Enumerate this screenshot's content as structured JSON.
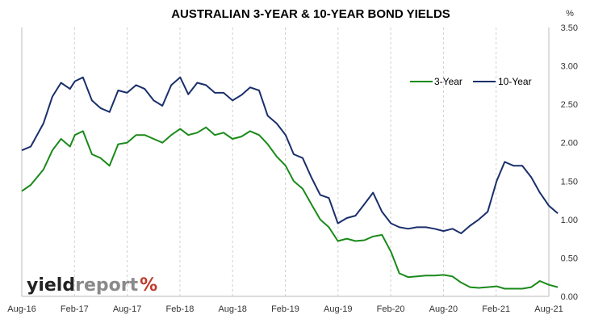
{
  "chart_data": {
    "type": "line",
    "title": "AUSTRALIAN 3-YEAR & 10-YEAR BOND YIELDS",
    "y_unit": "%",
    "ylim": [
      0,
      3.5
    ],
    "y_ticks": [
      "0.00",
      "0.50",
      "1.00",
      "1.50",
      "2.00",
      "2.50",
      "3.00",
      "3.50"
    ],
    "x_ticks": [
      "Aug-16",
      "Feb-17",
      "Aug-17",
      "Feb-18",
      "Aug-18",
      "Feb-19",
      "Aug-19",
      "Feb-20",
      "Aug-20",
      "Feb-21",
      "Aug-21"
    ],
    "grid": "vertical-dashed",
    "legend_position": "top-right",
    "series": [
      {
        "name": "3-Year",
        "color": "#1a8a1a",
        "points": [
          [
            "2016-08-01",
            1.37
          ],
          [
            "2016-09-01",
            1.45
          ],
          [
            "2016-10-15",
            1.65
          ],
          [
            "2016-11-15",
            1.9
          ],
          [
            "2016-12-15",
            2.05
          ],
          [
            "2017-01-15",
            1.95
          ],
          [
            "2017-02-01",
            2.1
          ],
          [
            "2017-03-01",
            2.15
          ],
          [
            "2017-04-01",
            1.85
          ],
          [
            "2017-05-01",
            1.8
          ],
          [
            "2017-06-01",
            1.7
          ],
          [
            "2017-07-01",
            1.98
          ],
          [
            "2017-08-01",
            2.0
          ],
          [
            "2017-09-01",
            2.1
          ],
          [
            "2017-10-01",
            2.1
          ],
          [
            "2017-11-01",
            2.05
          ],
          [
            "2017-12-01",
            2.0
          ],
          [
            "2018-01-01",
            2.1
          ],
          [
            "2018-02-01",
            2.18
          ],
          [
            "2018-03-01",
            2.1
          ],
          [
            "2018-04-01",
            2.13
          ],
          [
            "2018-05-01",
            2.2
          ],
          [
            "2018-06-01",
            2.1
          ],
          [
            "2018-07-01",
            2.13
          ],
          [
            "2018-08-01",
            2.05
          ],
          [
            "2018-09-01",
            2.08
          ],
          [
            "2018-10-01",
            2.15
          ],
          [
            "2018-11-01",
            2.1
          ],
          [
            "2018-12-01",
            1.98
          ],
          [
            "2019-01-01",
            1.82
          ],
          [
            "2019-02-01",
            1.7
          ],
          [
            "2019-03-01",
            1.5
          ],
          [
            "2019-04-01",
            1.4
          ],
          [
            "2019-05-01",
            1.2
          ],
          [
            "2019-06-01",
            1.0
          ],
          [
            "2019-07-01",
            0.9
          ],
          [
            "2019-08-01",
            0.72
          ],
          [
            "2019-09-01",
            0.75
          ],
          [
            "2019-10-01",
            0.72
          ],
          [
            "2019-11-01",
            0.73
          ],
          [
            "2019-12-01",
            0.78
          ],
          [
            "2020-01-01",
            0.8
          ],
          [
            "2020-02-01",
            0.58
          ],
          [
            "2020-03-01",
            0.3
          ],
          [
            "2020-04-01",
            0.25
          ],
          [
            "2020-05-01",
            0.26
          ],
          [
            "2020-06-01",
            0.27
          ],
          [
            "2020-07-01",
            0.27
          ],
          [
            "2020-08-01",
            0.28
          ],
          [
            "2020-09-01",
            0.26
          ],
          [
            "2020-10-01",
            0.18
          ],
          [
            "2020-11-01",
            0.12
          ],
          [
            "2020-12-01",
            0.11
          ],
          [
            "2021-01-01",
            0.12
          ],
          [
            "2021-02-01",
            0.13
          ],
          [
            "2021-03-01",
            0.1
          ],
          [
            "2021-04-01",
            0.1
          ],
          [
            "2021-05-01",
            0.1
          ],
          [
            "2021-06-01",
            0.12
          ],
          [
            "2021-07-01",
            0.2
          ],
          [
            "2021-08-01",
            0.15
          ],
          [
            "2021-09-01",
            0.12
          ]
        ]
      },
      {
        "name": "10-Year",
        "color": "#1a2f6b",
        "points": [
          [
            "2016-08-01",
            1.9
          ],
          [
            "2016-09-01",
            1.95
          ],
          [
            "2016-10-15",
            2.25
          ],
          [
            "2016-11-15",
            2.6
          ],
          [
            "2016-12-15",
            2.78
          ],
          [
            "2017-01-15",
            2.7
          ],
          [
            "2017-02-01",
            2.8
          ],
          [
            "2017-03-01",
            2.85
          ],
          [
            "2017-04-01",
            2.55
          ],
          [
            "2017-05-01",
            2.45
          ],
          [
            "2017-06-01",
            2.4
          ],
          [
            "2017-07-01",
            2.68
          ],
          [
            "2017-08-01",
            2.65
          ],
          [
            "2017-09-01",
            2.75
          ],
          [
            "2017-10-01",
            2.7
          ],
          [
            "2017-11-01",
            2.55
          ],
          [
            "2017-12-01",
            2.48
          ],
          [
            "2018-01-01",
            2.75
          ],
          [
            "2018-02-01",
            2.85
          ],
          [
            "2018-03-01",
            2.63
          ],
          [
            "2018-04-01",
            2.78
          ],
          [
            "2018-05-01",
            2.75
          ],
          [
            "2018-06-01",
            2.65
          ],
          [
            "2018-07-01",
            2.65
          ],
          [
            "2018-08-01",
            2.55
          ],
          [
            "2018-09-01",
            2.62
          ],
          [
            "2018-10-01",
            2.72
          ],
          [
            "2018-11-01",
            2.68
          ],
          [
            "2018-12-01",
            2.35
          ],
          [
            "2019-01-01",
            2.25
          ],
          [
            "2019-02-01",
            2.1
          ],
          [
            "2019-03-01",
            1.85
          ],
          [
            "2019-04-01",
            1.8
          ],
          [
            "2019-05-01",
            1.55
          ],
          [
            "2019-06-01",
            1.32
          ],
          [
            "2019-07-01",
            1.28
          ],
          [
            "2019-08-01",
            0.95
          ],
          [
            "2019-09-01",
            1.02
          ],
          [
            "2019-10-01",
            1.05
          ],
          [
            "2019-11-01",
            1.2
          ],
          [
            "2019-12-01",
            1.35
          ],
          [
            "2020-01-01",
            1.1
          ],
          [
            "2020-02-01",
            0.95
          ],
          [
            "2020-03-01",
            0.9
          ],
          [
            "2020-04-01",
            0.88
          ],
          [
            "2020-05-01",
            0.9
          ],
          [
            "2020-06-01",
            0.9
          ],
          [
            "2020-07-01",
            0.88
          ],
          [
            "2020-08-01",
            0.85
          ],
          [
            "2020-09-01",
            0.88
          ],
          [
            "2020-10-01",
            0.82
          ],
          [
            "2020-11-01",
            0.92
          ],
          [
            "2020-12-01",
            1.0
          ],
          [
            "2021-01-01",
            1.1
          ],
          [
            "2021-02-01",
            1.5
          ],
          [
            "2021-03-01",
            1.75
          ],
          [
            "2021-04-01",
            1.7
          ],
          [
            "2021-05-01",
            1.7
          ],
          [
            "2021-06-01",
            1.55
          ],
          [
            "2021-07-01",
            1.35
          ],
          [
            "2021-08-01",
            1.18
          ],
          [
            "2021-09-01",
            1.08
          ]
        ]
      }
    ]
  },
  "watermark": {
    "word_a": "yield",
    "word_b": "report",
    "symbol": "%",
    "color_a": "#222222",
    "color_b": "#8a8a8a",
    "symbol_color": "#c0392b"
  }
}
